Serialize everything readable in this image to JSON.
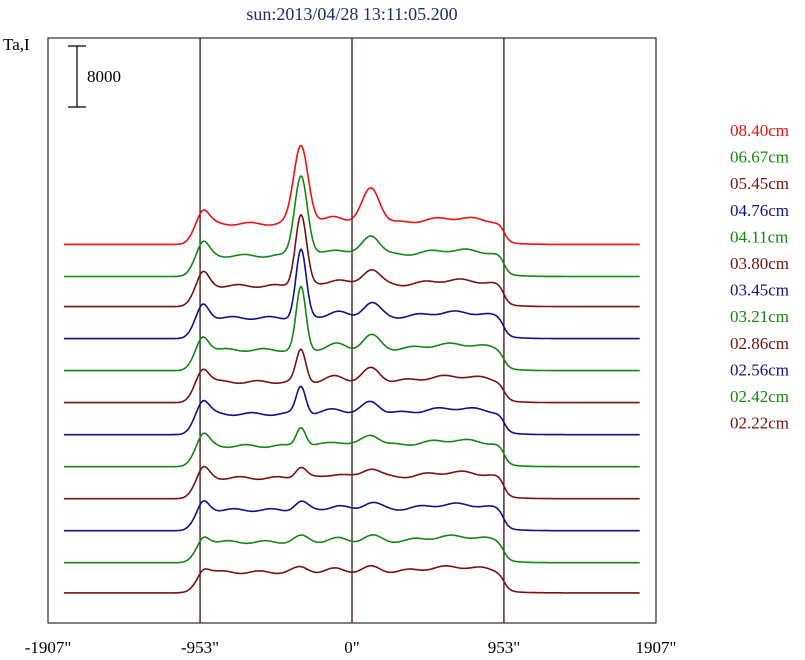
{
  "chart_data": {
    "type": "line",
    "title": "sun:2013/04/28 13:11:05.200",
    "ylabel": "Ta,I",
    "xlabel": "",
    "xlim": [
      -1907,
      1907
    ],
    "x_ticks": [
      {
        "value": -1907,
        "label": "-1907\""
      },
      {
        "value": -953,
        "label": "-953\""
      },
      {
        "value": 0,
        "label": "0\""
      },
      {
        "value": 953,
        "label": "953\""
      },
      {
        "value": 1907,
        "label": "1907\""
      }
    ],
    "vertical_lines": [
      -953,
      0,
      953
    ],
    "scale_bar": {
      "value": 8000,
      "label": "8000"
    },
    "grid": false,
    "legend_position": "right",
    "series": [
      {
        "name": "08.40cm",
        "color": "#ee1111",
        "baseline": 100500,
        "peaks": [
          [
            -953,
            5500,
            45
          ],
          [
            -320,
            21000,
            45
          ],
          [
            -100,
            2000,
            60
          ],
          [
            120,
            9500,
            55
          ],
          [
            650,
            1500,
            200
          ]
        ]
      },
      {
        "name": "06.67cm",
        "color": "#118811",
        "baseline": 92000,
        "peaks": [
          [
            -953,
            5500,
            45
          ],
          [
            -320,
            21500,
            40
          ],
          [
            -100,
            1800,
            60
          ],
          [
            120,
            5500,
            55
          ],
          [
            650,
            1500,
            200
          ]
        ]
      },
      {
        "name": "05.45cm",
        "color": "#7a1010",
        "baseline": 84000,
        "peaks": [
          [
            -953,
            5500,
            45
          ],
          [
            -320,
            19000,
            35
          ],
          [
            -100,
            1700,
            60
          ],
          [
            120,
            4500,
            55
          ],
          [
            650,
            1500,
            200
          ]
        ]
      },
      {
        "name": "04.76cm",
        "color": "#111188",
        "baseline": 75500,
        "peaks": [
          [
            -953,
            5500,
            45
          ],
          [
            -320,
            18000,
            32
          ],
          [
            -100,
            1600,
            60
          ],
          [
            120,
            4000,
            55
          ],
          [
            650,
            1500,
            200
          ]
        ]
      },
      {
        "name": "04.11cm",
        "color": "#118811",
        "baseline": 67000,
        "peaks": [
          [
            -953,
            5500,
            45
          ],
          [
            -320,
            16500,
            30
          ],
          [
            -100,
            1500,
            60
          ],
          [
            120,
            3800,
            55
          ],
          [
            650,
            1500,
            200
          ]
        ]
      },
      {
        "name": "03.80cm",
        "color": "#7a1010",
        "baseline": 58500,
        "peaks": [
          [
            -953,
            5500,
            45
          ],
          [
            -320,
            8500,
            30
          ],
          [
            -100,
            1400,
            60
          ],
          [
            120,
            3500,
            55
          ],
          [
            650,
            1500,
            200
          ]
        ]
      },
      {
        "name": "03.45cm",
        "color": "#111188",
        "baseline": 50000,
        "peaks": [
          [
            -953,
            5500,
            45
          ],
          [
            -320,
            7500,
            30
          ],
          [
            -100,
            1300,
            60
          ],
          [
            120,
            3200,
            55
          ],
          [
            650,
            1500,
            200
          ]
        ]
      },
      {
        "name": "03.21cm",
        "color": "#118811",
        "baseline": 41500,
        "peaks": [
          [
            -953,
            5000,
            45
          ],
          [
            -320,
            5200,
            30
          ],
          [
            -100,
            1200,
            60
          ],
          [
            120,
            3000,
            55
          ],
          [
            650,
            1500,
            200
          ]
        ]
      },
      {
        "name": "02.86cm",
        "color": "#7a1010",
        "baseline": 33000,
        "peaks": [
          [
            -953,
            4500,
            45
          ],
          [
            -320,
            3000,
            35
          ],
          [
            -100,
            1100,
            60
          ],
          [
            120,
            2600,
            55
          ],
          [
            650,
            1500,
            200
          ]
        ]
      },
      {
        "name": "02.56cm",
        "color": "#111188",
        "baseline": 24500,
        "peaks": [
          [
            -953,
            4000,
            45
          ],
          [
            -320,
            2200,
            40
          ],
          [
            -100,
            1000,
            60
          ],
          [
            120,
            2000,
            55
          ],
          [
            650,
            1500,
            200
          ]
        ]
      },
      {
        "name": "02.42cm",
        "color": "#118811",
        "baseline": 16000,
        "peaks": [
          [
            -953,
            3000,
            45
          ],
          [
            -320,
            1500,
            45
          ],
          [
            -100,
            900,
            60
          ],
          [
            120,
            1600,
            55
          ],
          [
            650,
            1500,
            200
          ]
        ]
      },
      {
        "name": "02.22cm",
        "color": "#7a1010",
        "baseline": 8000,
        "peaks": [
          [
            -953,
            2500,
            45
          ],
          [
            -320,
            1200,
            50
          ],
          [
            -100,
            800,
            60
          ],
          [
            120,
            1300,
            55
          ],
          [
            650,
            1400,
            200
          ]
        ]
      }
    ],
    "disk_level": 5500,
    "ylim": [
      0,
      150000
    ]
  }
}
